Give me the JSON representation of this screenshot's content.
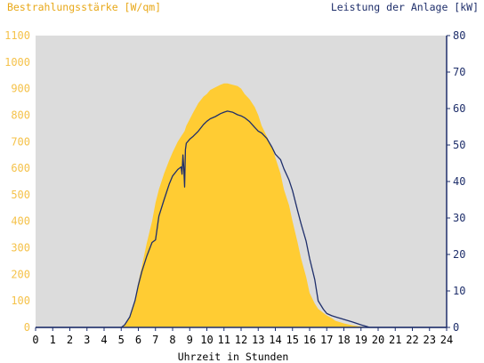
{
  "colors": {
    "plot_bg": "#dcdcdc",
    "irradiance_fill": "#ffcc33",
    "power_line": "#1f2f6b",
    "left_axis_text": "#f5c24a",
    "left_title_text": "#e8a818",
    "right_axis_text": "#1f2f6b",
    "axis_line": "#1f2f6b"
  },
  "chart_data": {
    "type": "area",
    "title_left": "Bestrahlungsstärke [W/qm]",
    "title_right": "Leistung der Anlage [kW]",
    "xlabel": "Uhrzeit in Stunden",
    "xlim": [
      0,
      24
    ],
    "ylim_left": [
      0,
      1100
    ],
    "ylim_right": [
      0,
      80
    ],
    "x_ticks": [
      0,
      1,
      2,
      3,
      4,
      5,
      6,
      7,
      8,
      9,
      10,
      11,
      12,
      13,
      14,
      15,
      16,
      17,
      18,
      19,
      20,
      21,
      22,
      23,
      24
    ],
    "y_ticks_left": [
      0,
      100,
      200,
      300,
      400,
      500,
      600,
      700,
      800,
      900,
      1000,
      1100
    ],
    "y_ticks_right": [
      0,
      10,
      20,
      30,
      40,
      50,
      60,
      70,
      80
    ],
    "grid": false,
    "series": [
      {
        "name": "Bestrahlungsstärke [W/qm]",
        "axis": "left",
        "style": "area",
        "x": [
          0,
          5.0,
          5.2,
          5.5,
          5.8,
          6.0,
          6.2,
          6.5,
          6.8,
          7.0,
          7.2,
          7.5,
          7.8,
          8.0,
          8.3,
          8.5,
          8.6,
          8.7,
          8.8,
          9.0,
          9.2,
          9.5,
          9.8,
          10.0,
          10.2,
          10.5,
          10.8,
          11.0,
          11.2,
          11.5,
          11.8,
          12.0,
          12.2,
          12.5,
          12.8,
          13.0,
          13.2,
          13.5,
          13.8,
          14.0,
          14.3,
          14.5,
          14.8,
          15.0,
          15.3,
          15.5,
          15.8,
          16.0,
          16.3,
          16.5,
          16.8,
          17.0,
          17.3,
          17.5,
          18.0,
          18.5,
          19.0,
          19.3,
          19.5,
          19.8,
          20.0,
          24
        ],
        "y": [
          0,
          0,
          10,
          40,
          100,
          170,
          230,
          320,
          400,
          470,
          520,
          580,
          630,
          660,
          700,
          720,
          730,
          740,
          760,
          785,
          810,
          845,
          870,
          880,
          895,
          905,
          915,
          920,
          920,
          915,
          910,
          900,
          880,
          860,
          830,
          800,
          760,
          720,
          680,
          640,
          580,
          520,
          460,
          400,
          320,
          260,
          190,
          130,
          90,
          70,
          55,
          45,
          35,
          25,
          15,
          8,
          3,
          1,
          0,
          0,
          0,
          0
        ]
      },
      {
        "name": "Leistung der Anlage [kW]",
        "axis": "right",
        "style": "line",
        "x": [
          0,
          5.0,
          5.2,
          5.5,
          5.8,
          6.0,
          6.2,
          6.5,
          6.8,
          7.0,
          7.2,
          7.5,
          7.8,
          8.0,
          8.3,
          8.5,
          8.55,
          8.6,
          8.65,
          8.7,
          8.75,
          8.8,
          9.0,
          9.2,
          9.5,
          9.8,
          10.0,
          10.2,
          10.5,
          10.8,
          11.0,
          11.2,
          11.5,
          11.8,
          12.0,
          12.2,
          12.5,
          12.8,
          13.0,
          13.2,
          13.5,
          13.8,
          14.0,
          14.3,
          14.5,
          14.8,
          15.0,
          15.3,
          15.5,
          15.8,
          16.0,
          16.3,
          16.5,
          16.8,
          17.0,
          17.3,
          17.5,
          18.0,
          18.5,
          19.0,
          19.3,
          19.5,
          19.8,
          20.0,
          24
        ],
        "y": [
          0,
          0,
          0.7,
          2.9,
          7.3,
          11.6,
          15.3,
          19.6,
          23.3,
          24.0,
          30.5,
          35.0,
          39.3,
          41.5,
          43.3,
          44.0,
          42.0,
          47.3,
          44.0,
          38.5,
          48.7,
          50.5,
          51.6,
          52.4,
          53.8,
          55.6,
          56.5,
          57.2,
          57.8,
          58.6,
          59.0,
          59.3,
          59.0,
          58.3,
          58.0,
          57.5,
          56.4,
          54.8,
          53.8,
          53.3,
          51.8,
          49.4,
          47.5,
          46.0,
          43.5,
          40.4,
          37.5,
          32.0,
          28.4,
          23.6,
          18.9,
          13.1,
          7.3,
          5.0,
          3.8,
          3.2,
          2.9,
          2.2,
          1.5,
          0.7,
          0.3,
          0,
          0,
          0,
          0
        ]
      }
    ]
  }
}
